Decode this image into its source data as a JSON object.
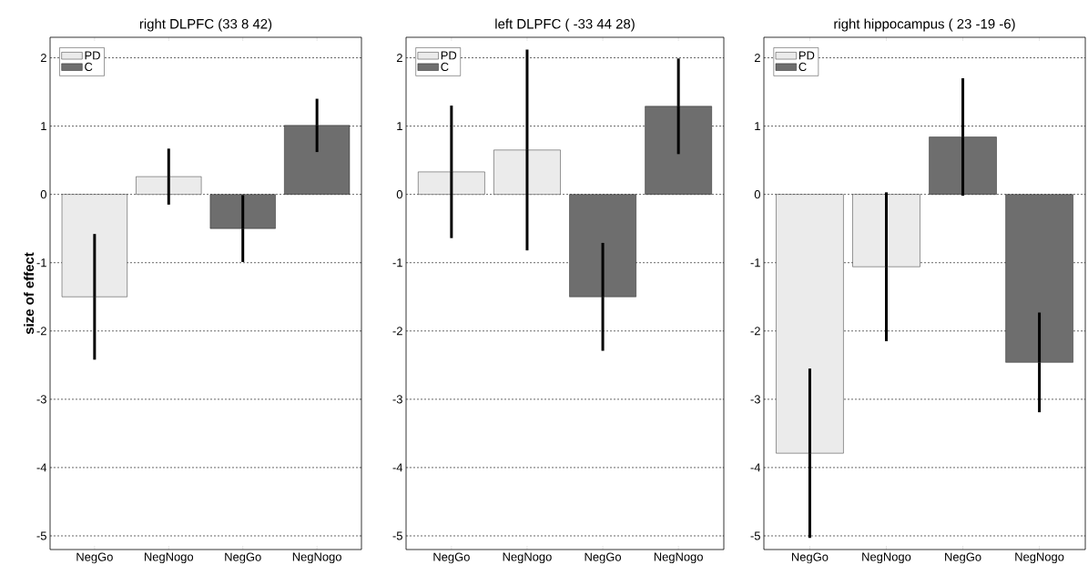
{
  "chart_data": [
    {
      "type": "bar",
      "title": "right DLPFC (33 8 42)",
      "ylabel": "size of effect",
      "categories": [
        "NegGo",
        "NegNogo",
        "NegGo",
        "NegNogo"
      ],
      "series": [
        {
          "name": "PD",
          "color": "#ebebeb",
          "values": [
            -1.5,
            0.26,
            null,
            null
          ],
          "errors": [
            0.92,
            0.41,
            null,
            null
          ]
        },
        {
          "name": "C",
          "color": "#6e6e6e",
          "values": [
            null,
            null,
            -0.5,
            1.01
          ],
          "errors": [
            null,
            null,
            0.49,
            0.39
          ]
        }
      ],
      "ylim": [
        -5.2,
        2.3
      ],
      "yticks": [
        -5,
        -4,
        -3,
        -2,
        -1,
        0,
        1,
        2
      ],
      "grid": "y",
      "legend": "top left"
    },
    {
      "type": "bar",
      "title": "left DLPFC ( -33 44 28)",
      "categories": [
        "NegGo",
        "NegNogo",
        "NegGo",
        "NegNogo"
      ],
      "series": [
        {
          "name": "PD",
          "color": "#ebebeb",
          "values": [
            0.33,
            0.65,
            null,
            null
          ],
          "errors": [
            0.97,
            1.47,
            null,
            null
          ]
        },
        {
          "name": "C",
          "color": "#6e6e6e",
          "values": [
            null,
            null,
            -1.5,
            1.29
          ],
          "errors": [
            null,
            null,
            0.79,
            0.7
          ]
        }
      ],
      "ylim": [
        -5.2,
        2.3
      ],
      "yticks": [
        -5,
        -4,
        -3,
        -2,
        -1,
        0,
        1,
        2
      ],
      "grid": "y",
      "legend": "top left"
    },
    {
      "type": "bar",
      "title": "right hippocampus ( 23 -19 -6)",
      "categories": [
        "NegGo",
        "NegNogo",
        "NegGo",
        "NegNogo"
      ],
      "series": [
        {
          "name": "PD",
          "color": "#ebebeb",
          "values": [
            -3.79,
            -1.06,
            null,
            null
          ],
          "errors": [
            1.24,
            1.09,
            null,
            null
          ]
        },
        {
          "name": "C",
          "color": "#6e6e6e",
          "values": [
            null,
            null,
            0.84,
            -2.46
          ],
          "errors": [
            null,
            null,
            0.86,
            0.73
          ]
        }
      ],
      "ylim": [
        -5.2,
        2.3
      ],
      "yticks": [
        -5,
        -4,
        -3,
        -2,
        -1,
        0,
        1,
        2
      ],
      "grid": "y",
      "legend": "top left"
    }
  ]
}
